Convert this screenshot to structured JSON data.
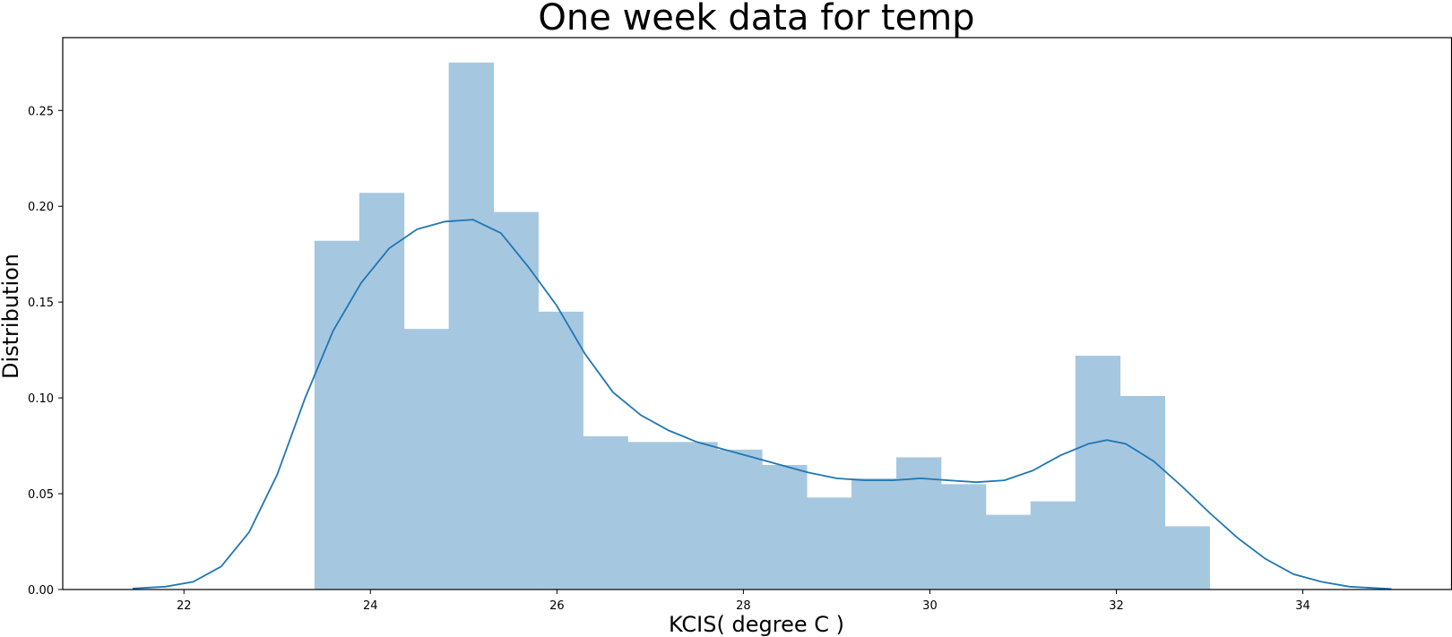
{
  "chart_data": {
    "type": "bar",
    "title": "One week data for temp",
    "xlabel": "KCIS( degree C )",
    "ylabel": "Distribution",
    "xlim": [
      20.7,
      35.6
    ],
    "ylim": [
      0,
      0.288
    ],
    "xticks": [
      22,
      24,
      26,
      28,
      30,
      32,
      34
    ],
    "yticks": [
      0.0,
      0.05,
      0.1,
      0.15,
      0.2,
      0.25
    ],
    "ytick_labels": [
      "0.00",
      "0.05",
      "0.10",
      "0.15",
      "0.20",
      "0.25"
    ],
    "grid": false,
    "bar_color": "#a6c7e0",
    "line_color": "#1f77b4",
    "histogram": {
      "bin_edges": [
        23.4,
        23.88,
        24.36,
        24.84,
        25.32,
        25.8,
        26.28,
        26.76,
        27.24,
        27.72,
        28.2,
        28.68,
        29.16,
        29.64,
        30.12,
        30.6,
        31.08,
        31.56,
        32.04,
        32.52,
        33.0
      ],
      "densities": [
        0.182,
        0.207,
        0.136,
        0.275,
        0.197,
        0.145,
        0.08,
        0.077,
        0.077,
        0.073,
        0.065,
        0.048,
        0.058,
        0.069,
        0.055,
        0.039,
        0.046,
        0.122,
        0.101,
        0.033
      ]
    },
    "kde": {
      "x": [
        21.45,
        21.8,
        22.1,
        22.4,
        22.7,
        23.0,
        23.3,
        23.6,
        23.9,
        24.2,
        24.5,
        24.8,
        25.1,
        25.4,
        25.7,
        26.0,
        26.3,
        26.6,
        26.9,
        27.2,
        27.5,
        27.8,
        28.1,
        28.4,
        28.7,
        29.0,
        29.3,
        29.6,
        29.9,
        30.2,
        30.5,
        30.8,
        31.1,
        31.4,
        31.7,
        31.9,
        32.1,
        32.4,
        32.7,
        33.0,
        33.3,
        33.6,
        33.9,
        34.2,
        34.5,
        34.95
      ],
      "y": [
        0.0005,
        0.0015,
        0.004,
        0.012,
        0.03,
        0.06,
        0.1,
        0.135,
        0.16,
        0.178,
        0.188,
        0.192,
        0.193,
        0.186,
        0.168,
        0.148,
        0.123,
        0.103,
        0.091,
        0.083,
        0.077,
        0.073,
        0.069,
        0.065,
        0.061,
        0.058,
        0.057,
        0.057,
        0.058,
        0.057,
        0.056,
        0.057,
        0.062,
        0.07,
        0.076,
        0.078,
        0.076,
        0.067,
        0.054,
        0.04,
        0.027,
        0.016,
        0.008,
        0.004,
        0.0015,
        0.0003
      ]
    }
  }
}
